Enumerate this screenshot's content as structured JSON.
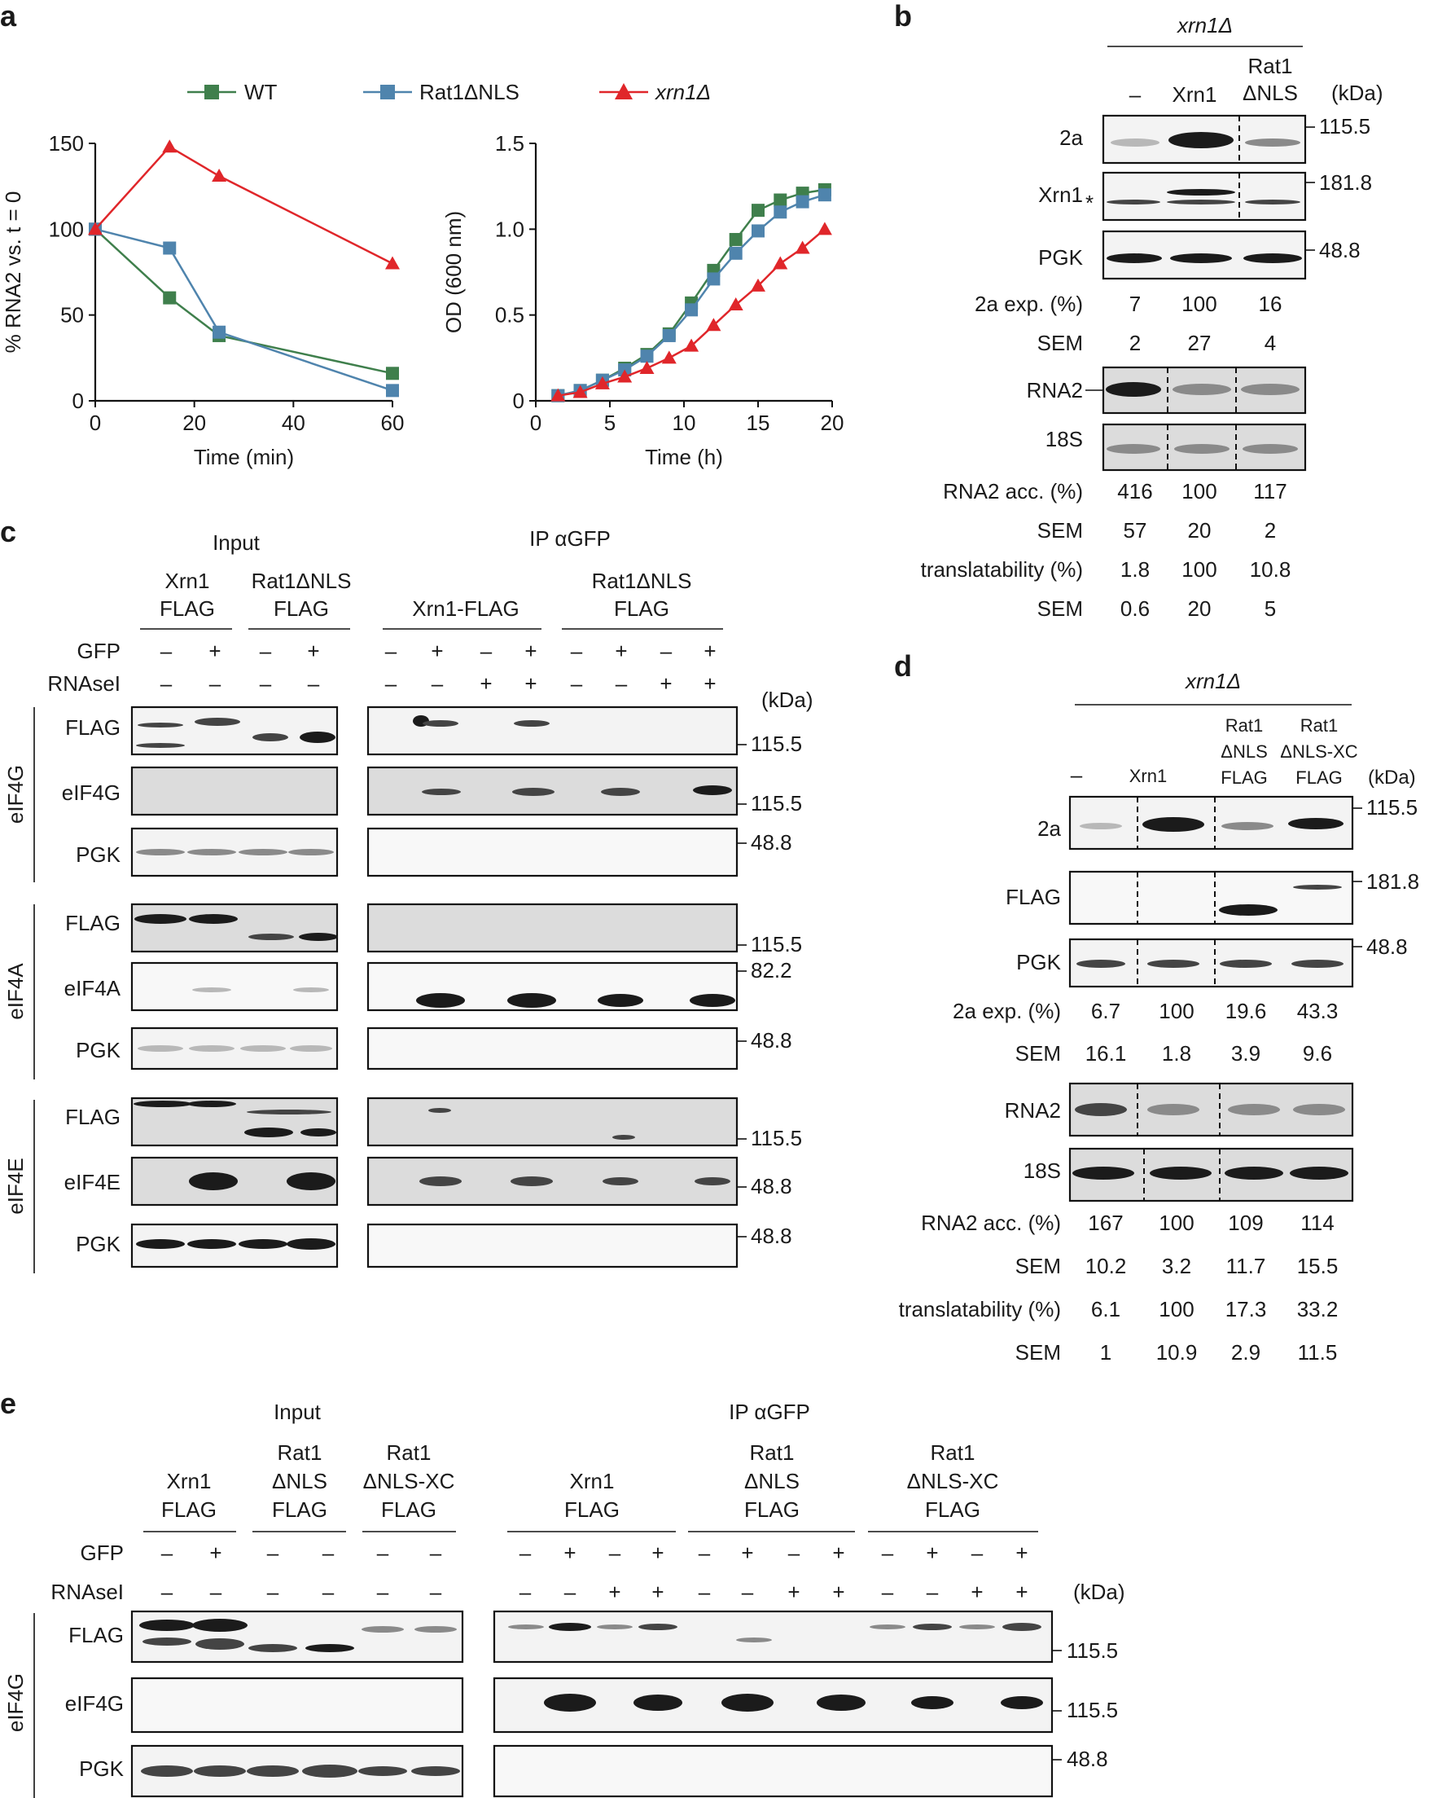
{
  "panels": {
    "a": "a",
    "b": "b",
    "c": "c",
    "d": "d",
    "e": "e"
  },
  "chart_data": [
    {
      "type": "line",
      "title": "",
      "xlabel": "Time (min)",
      "ylabel": "% RNA2 vs. t = 0",
      "xlim": [
        0,
        60
      ],
      "ylim": [
        0,
        150
      ],
      "xticks": [
        "0",
        "20",
        "40",
        "60"
      ],
      "yticks": [
        "0",
        "50",
        "100",
        "150"
      ],
      "series": [
        {
          "name": "WT",
          "color": "#3f7f4c",
          "marker": "square",
          "x": [
            0,
            15,
            25,
            60
          ],
          "values": [
            100,
            60,
            38,
            16
          ]
        },
        {
          "name": "Rat1ΔNLS",
          "color": "#4f84ad",
          "marker": "square",
          "x": [
            0,
            15,
            25,
            60
          ],
          "values": [
            100,
            89,
            40,
            6
          ]
        },
        {
          "name": "xrn1Δ",
          "color": "#e0262a",
          "marker": "triangle",
          "x": [
            0,
            15,
            25,
            60
          ],
          "values": [
            100,
            148,
            131,
            80
          ]
        }
      ]
    },
    {
      "type": "line",
      "title": "",
      "xlabel": "Time (h)",
      "ylabel": "OD (600 nm)",
      "xlim": [
        0,
        20
      ],
      "ylim": [
        0,
        1.5
      ],
      "xticks": [
        "0",
        "5",
        "10",
        "15",
        "20"
      ],
      "yticks": [
        "0",
        "0.5",
        "1.0",
        "1.5"
      ],
      "series": [
        {
          "name": "WT",
          "color": "#3f7f4c",
          "marker": "square",
          "x": [
            1.5,
            3,
            4.5,
            6,
            7.5,
            9,
            10.5,
            12,
            13.5,
            15,
            16.5,
            18,
            19.5
          ],
          "values": [
            0.03,
            0.06,
            0.12,
            0.19,
            0.27,
            0.39,
            0.57,
            0.76,
            0.94,
            1.11,
            1.17,
            1.21,
            1.23
          ]
        },
        {
          "name": "Rat1ΔNLS",
          "color": "#4f84ad",
          "marker": "square",
          "x": [
            1.5,
            3,
            4.5,
            6,
            7.5,
            9,
            10.5,
            12,
            13.5,
            15,
            16.5,
            18,
            19.5
          ],
          "values": [
            0.03,
            0.06,
            0.12,
            0.18,
            0.26,
            0.38,
            0.53,
            0.71,
            0.86,
            0.99,
            1.1,
            1.16,
            1.2
          ]
        },
        {
          "name": "xrn1Δ",
          "color": "#e0262a",
          "marker": "triangle",
          "x": [
            1.5,
            3,
            4.5,
            6,
            7.5,
            9,
            10.5,
            12,
            13.5,
            15,
            16.5,
            18,
            19.5
          ],
          "values": [
            0.03,
            0.05,
            0.1,
            0.14,
            0.19,
            0.25,
            0.32,
            0.44,
            0.56,
            0.67,
            0.8,
            0.89,
            1.0
          ]
        }
      ]
    }
  ],
  "legend": {
    "wt": "WT",
    "rat1": "Rat1ΔNLS",
    "xrn1": "xrn1Δ"
  },
  "panel_b": {
    "strain": "xrn1Δ",
    "cols": [
      "–",
      "Xrn1",
      "Rat1",
      "ΔNLS"
    ],
    "kda": "(kDa)",
    "rows": [
      "2a",
      "Xrn1",
      "PGK",
      "RNA2",
      "18S"
    ],
    "star": "*",
    "markers": [
      "115.5",
      "181.8",
      "48.8"
    ],
    "stats": [
      {
        "label": "2a exp. (%)",
        "v": [
          "7",
          "100",
          "16"
        ]
      },
      {
        "label": "SEM",
        "v": [
          "2",
          "27",
          "4"
        ]
      },
      {
        "label": "RNA2 acc. (%)",
        "v": [
          "416",
          "100",
          "117"
        ]
      },
      {
        "label": "SEM",
        "v": [
          "57",
          "20",
          "2"
        ]
      },
      {
        "label": "translatability (%)",
        "v": [
          "1.8",
          "100",
          "10.8"
        ]
      },
      {
        "label": "SEM",
        "v": [
          "0.6",
          "20",
          "5"
        ]
      }
    ]
  },
  "panel_c": {
    "input": "Input",
    "ip": "IP αGFP",
    "groups": [
      "Xrn1",
      "FLAG",
      "Rat1ΔNLS",
      "FLAG",
      "Xrn1-FLAG",
      "Rat1ΔNLS",
      "FLAG"
    ],
    "gfp_label": "GFP",
    "rnase_label": "RNAseI",
    "input_gfp": [
      "–",
      "+",
      "–",
      "+"
    ],
    "input_rnase": [
      "–",
      "–",
      "–",
      "–"
    ],
    "ip_gfp": [
      "–",
      "+",
      "–",
      "+",
      "–",
      "+",
      "–",
      "+"
    ],
    "ip_rnase": [
      "–",
      "–",
      "+",
      "+",
      "–",
      "–",
      "+",
      "+"
    ],
    "kda": "(kDa)",
    "sections": [
      "eIF4G",
      "eIF4A",
      "eIF4E"
    ],
    "rows": [
      "FLAG",
      "eIF4G",
      "PGK",
      "FLAG",
      "eIF4A",
      "PGK",
      "FLAG",
      "eIF4E",
      "PGK"
    ],
    "markers": [
      "115.5",
      "115.5",
      "48.8",
      "115.5",
      "82.2",
      "48.8",
      "115.5",
      "48.8",
      "48.8"
    ]
  },
  "panel_d": {
    "strain": "xrn1Δ",
    "cols": [
      "–",
      "Xrn1",
      "Rat1",
      "ΔNLS",
      "FLAG",
      "Rat1",
      "ΔNLS-XC",
      "FLAG"
    ],
    "kda": "(kDa)",
    "rows": [
      "2a",
      "FLAG",
      "PGK",
      "RNA2",
      "18S"
    ],
    "markers": [
      "115.5",
      "181.8",
      "48.8"
    ],
    "stats": [
      {
        "label": "2a exp. (%)",
        "v": [
          "6.7",
          "100",
          "19.6",
          "43.3"
        ]
      },
      {
        "label": "SEM",
        "v": [
          "16.1",
          "1.8",
          "3.9",
          "9.6"
        ]
      },
      {
        "label": "RNA2 acc. (%)",
        "v": [
          "167",
          "100",
          "109",
          "114"
        ]
      },
      {
        "label": "SEM",
        "v": [
          "10.2",
          "3.2",
          "11.7",
          "15.5"
        ]
      },
      {
        "label": "translatability (%)",
        "v": [
          "6.1",
          "100",
          "17.3",
          "33.2"
        ]
      },
      {
        "label": "SEM",
        "v": [
          "1",
          "10.9",
          "2.9",
          "11.5"
        ]
      }
    ]
  },
  "panel_e": {
    "input": "Input",
    "ip": "IP αGFP",
    "input_groups": [
      "Xrn1",
      "FLAG",
      "Rat1",
      "ΔNLS",
      "FLAG",
      "Rat1",
      "ΔNLS-XC",
      "FLAG"
    ],
    "ip_groups": [
      "Xrn1",
      "FLAG",
      "Rat1",
      "ΔNLS",
      "FLAG",
      "Rat1",
      "ΔNLS-XC",
      "FLAG"
    ],
    "gfp_label": "GFP",
    "rnase_label": "RNAseI",
    "input_gfp": [
      "–",
      "+",
      "–",
      "–",
      "–",
      "–"
    ],
    "input_rnase": [
      "–",
      "–",
      "–",
      "–",
      "–",
      "–"
    ],
    "ip_gfp": [
      "–",
      "+",
      "–",
      "+",
      "–",
      "+",
      "–",
      "+",
      "–",
      "+",
      "–",
      "+"
    ],
    "ip_rnase": [
      "–",
      "–",
      "+",
      "+",
      "–",
      "–",
      "+",
      "+",
      "–",
      "–",
      "+",
      "+"
    ],
    "kda": "(kDa)",
    "section": "eIF4G",
    "rows": [
      "FLAG",
      "eIF4G",
      "PGK"
    ],
    "markers": [
      "115.5",
      "115.5",
      "48.8"
    ]
  }
}
